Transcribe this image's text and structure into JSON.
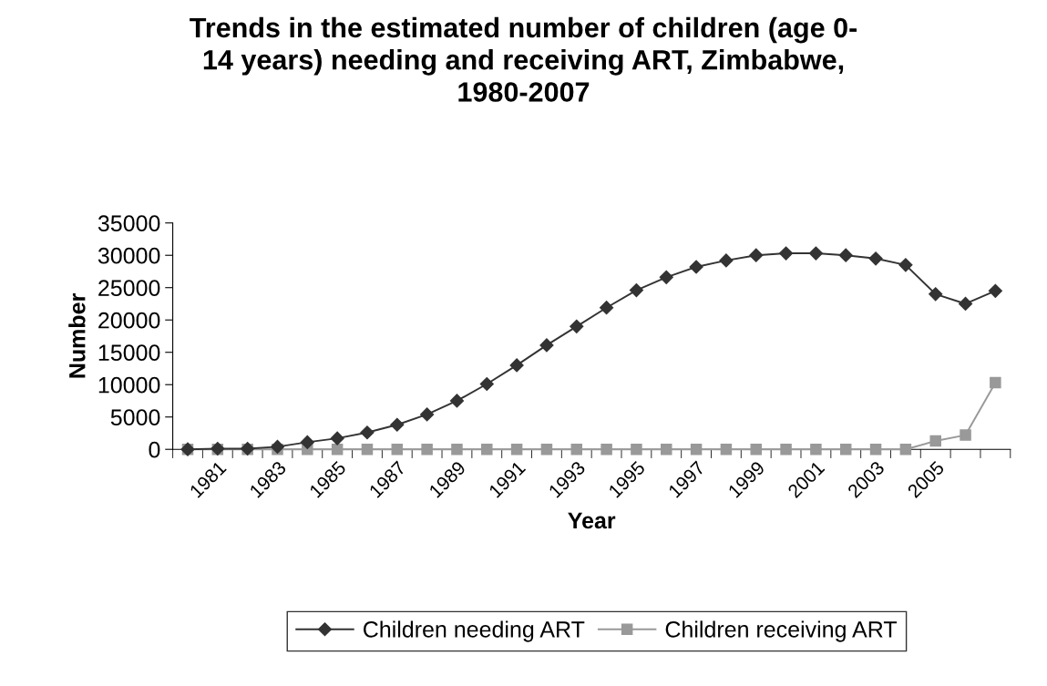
{
  "chart_data": {
    "type": "line",
    "title": "Trends in the estimated number of children (age 0-\n14 years) needing and receiving ART, Zimbabwe,\n1980-2007",
    "xlabel": "Year",
    "ylabel": "Number",
    "categories": [
      null,
      "1981",
      null,
      "1983",
      null,
      "1985",
      null,
      "1987",
      null,
      "1989",
      null,
      "1991",
      null,
      "1993",
      null,
      "1995",
      null,
      "1997",
      null,
      "1999",
      null,
      "2001",
      null,
      "2003",
      null,
      "2005",
      null,
      null
    ],
    "series": [
      {
        "name": "Children needing ART",
        "color": "#333333",
        "marker": "diamond",
        "values": [
          0,
          100,
          100,
          400,
          1100,
          1700,
          2600,
          3800,
          5400,
          7500,
          10100,
          13000,
          16100,
          19000,
          21900,
          24600,
          26600,
          28200,
          29200,
          30000,
          30300,
          30300,
          30000,
          29500,
          28500,
          24000,
          22500,
          24500
        ]
      },
      {
        "name": "Children receiving ART",
        "color": "#999999",
        "marker": "square",
        "values": [
          0,
          0,
          0,
          0,
          0,
          0,
          0,
          0,
          0,
          0,
          0,
          0,
          0,
          0,
          0,
          0,
          0,
          0,
          0,
          0,
          0,
          0,
          0,
          0,
          0,
          1300,
          2200,
          10300
        ]
      }
    ],
    "ylim": [
      0,
      35000
    ],
    "yticks": [
      0,
      5000,
      10000,
      15000,
      20000,
      25000,
      30000,
      35000
    ],
    "grid": false,
    "legend": "bottom"
  }
}
